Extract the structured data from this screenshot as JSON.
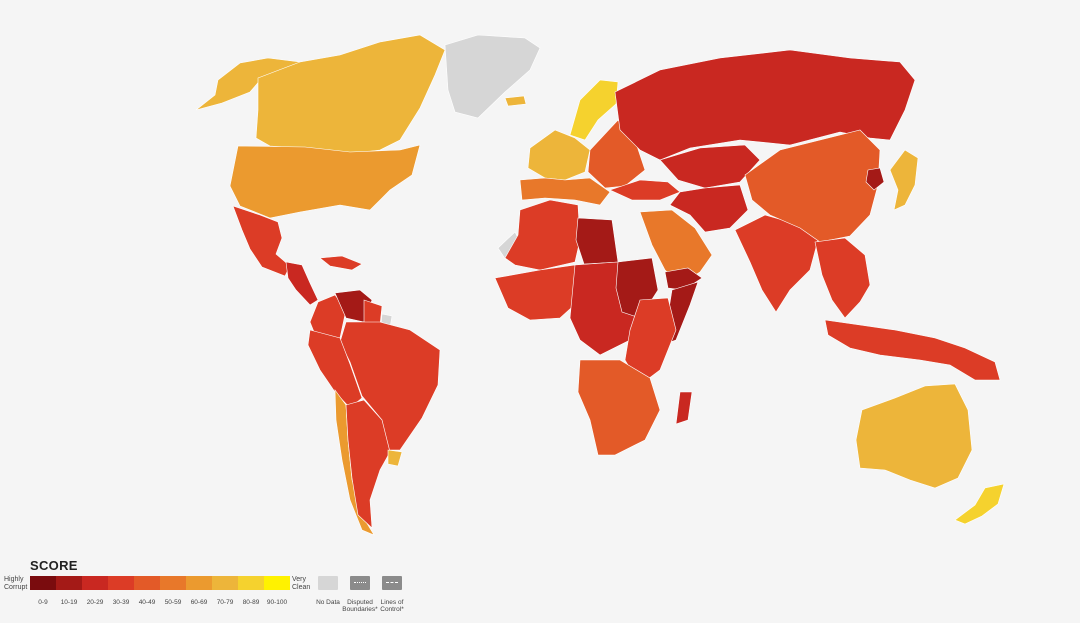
{
  "legend": {
    "title": "SCORE",
    "low_label": "Highly Corrupt",
    "high_label": "Very Clean",
    "ranges": [
      "0-9",
      "10-19",
      "20-29",
      "30-39",
      "40-49",
      "50-59",
      "60-69",
      "70-79",
      "80-89",
      "90-100"
    ],
    "colors": [
      "#7a0c0e",
      "#a41a17",
      "#c92821",
      "#dc3c26",
      "#e35a28",
      "#e8782a",
      "#eb9a2f",
      "#edb53a",
      "#f5d22e",
      "#fff200"
    ],
    "no_data_label": "No Data",
    "disputed_label": "Disputed Boundaries*",
    "lines_label": "Lines of Control*",
    "no_data_color": "#d6d6d6"
  },
  "regions": [
    {
      "name": "Alaska / Western Canada",
      "band": "70-79"
    },
    {
      "name": "Canada",
      "band": "70-79"
    },
    {
      "name": "Greenland",
      "band": "No Data"
    },
    {
      "name": "United States",
      "band": "60-69"
    },
    {
      "name": "Mexico",
      "band": "30-39"
    },
    {
      "name": "Central America",
      "band": "20-29"
    },
    {
      "name": "Caribbean",
      "band": "30-39"
    },
    {
      "name": "Venezuela",
      "band": "10-19"
    },
    {
      "name": "Colombia",
      "band": "30-39"
    },
    {
      "name": "Guyana / Suriname",
      "band": "30-39"
    },
    {
      "name": "French Guiana",
      "band": "No Data"
    },
    {
      "name": "Brazil",
      "band": "30-39"
    },
    {
      "name": "Peru / Bolivia",
      "band": "30-39"
    },
    {
      "name": "Chile",
      "band": "60-69"
    },
    {
      "name": "Argentina",
      "band": "30-39"
    },
    {
      "name": "Uruguay",
      "band": "70-79"
    },
    {
      "name": "Iceland",
      "band": "70-79"
    },
    {
      "name": "Scandinavia",
      "band": "80-89"
    },
    {
      "name": "Western Europe",
      "band": "70-79"
    },
    {
      "name": "Southern Europe",
      "band": "50-59"
    },
    {
      "name": "Eastern Europe",
      "band": "40-49"
    },
    {
      "name": "Russia",
      "band": "20-29"
    },
    {
      "name": "Turkey / Caucasus",
      "band": "30-39"
    },
    {
      "name": "Central Asia",
      "band": "20-29"
    },
    {
      "name": "Iran / Middle East",
      "band": "20-29"
    },
    {
      "name": "Arabia",
      "band": "50-59"
    },
    {
      "name": "Yemen / Syria",
      "band": "10-19"
    },
    {
      "name": "Western Sahara",
      "band": "No Data"
    },
    {
      "name": "North Africa",
      "band": "30-39"
    },
    {
      "name": "Libya",
      "band": "10-19"
    },
    {
      "name": "West Africa",
      "band": "30-39"
    },
    {
      "name": "Central Africa",
      "band": "20-29"
    },
    {
      "name": "Sudan / South Sudan",
      "band": "10-19"
    },
    {
      "name": "Somalia",
      "band": "10-19"
    },
    {
      "name": "East Africa",
      "band": "30-39"
    },
    {
      "name": "Southern Africa",
      "band": "40-49"
    },
    {
      "name": "Madagascar",
      "band": "20-29"
    },
    {
      "name": "India / South Asia",
      "band": "30-39"
    },
    {
      "name": "China",
      "band": "40-49"
    },
    {
      "name": "North Korea",
      "band": "10-19"
    },
    {
      "name": "Japan / Korea",
      "band": "70-79"
    },
    {
      "name": "Southeast Asia",
      "band": "30-39"
    },
    {
      "name": "Indonesia / Papua",
      "band": "30-39"
    },
    {
      "name": "Australia",
      "band": "70-79"
    },
    {
      "name": "New Zealand",
      "band": "80-89"
    }
  ]
}
